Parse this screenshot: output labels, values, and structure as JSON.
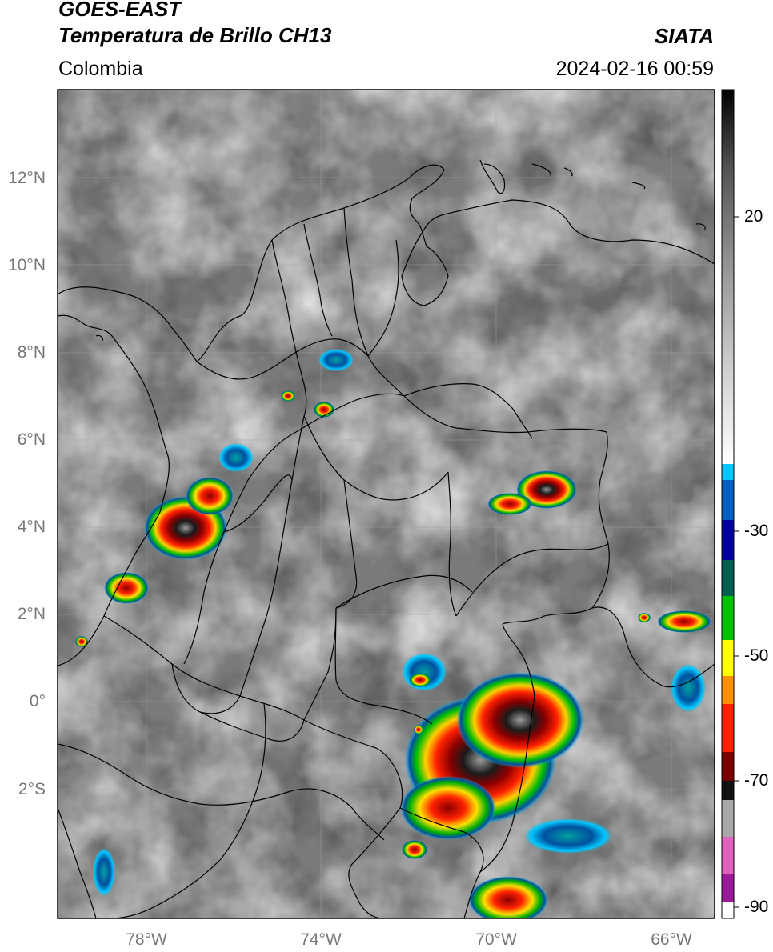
{
  "header": {
    "satellite": "GOES-EAST",
    "product": "Temperatura de Brillo CH13",
    "region": "Colombia",
    "organization": "SIATA",
    "datetime": "2024-02-16 00:59"
  },
  "map": {
    "lat_labels": [
      "12°N",
      "10°N",
      "8°N",
      "6°N",
      "4°N",
      "2°N",
      "0°",
      "2°S"
    ],
    "lon_labels": [
      "78°W",
      "74°W",
      "70°W",
      "66°W"
    ],
    "colors": {
      "land_gray": "#7a7a7a",
      "cloud_white": "#e8e8e8",
      "border": "#000000"
    }
  },
  "colorbar": {
    "ticks": [
      "20",
      "-30",
      "-50",
      "-70",
      "-90"
    ],
    "colors": [
      "#ffffff",
      "#9b1a9a",
      "#e060c0",
      "#b0b0b0",
      "#000000",
      "#8b0000",
      "#ff2000",
      "#ff8c00",
      "#ffff00",
      "#00c000",
      "#006050",
      "#0000a0",
      "#00c8ff",
      "#f0f0f0",
      "#707070",
      "#000000"
    ]
  }
}
